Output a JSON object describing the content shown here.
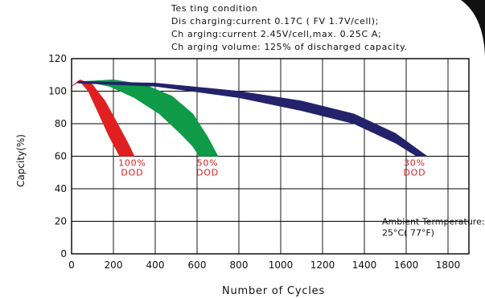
{
  "testing_condition": {
    "heading": "Tes ting condition",
    "lines": [
      "Dis charging:current 0.17C ( FV 1.7V/cell);",
      "Ch arging:current 2.45V/cell,max. 0.25C A;",
      "Ch arging volume: 125% of discharged capacity."
    ]
  },
  "chart_data": {
    "type": "area",
    "title": "",
    "xlabel": "Number of Cycles",
    "ylabel": "Capcity(%)",
    "xlim": [
      0,
      1900
    ],
    "ylim": [
      0,
      120
    ],
    "x_ticks": [
      0,
      200,
      400,
      600,
      800,
      1000,
      1200,
      1400,
      1600,
      1800
    ],
    "y_ticks": [
      0,
      20,
      40,
      60,
      80,
      100,
      120
    ],
    "x_tick_labels": [
      "0",
      "200",
      "400",
      "600",
      "800",
      "1000",
      "1200",
      "1400",
      "1600",
      "1800"
    ],
    "y_tick_labels": [
      "0",
      "20",
      "40",
      "60",
      "80",
      "100",
      "120"
    ],
    "grid": true,
    "series": [
      {
        "label_lines": [
          "100%",
          "DOD"
        ],
        "label_at": [
          290,
          54
        ],
        "color": "#e02020",
        "label_color": "#d62020",
        "upper": [
          [
            0,
            103
          ],
          [
            40,
            107
          ],
          [
            100,
            104
          ],
          [
            160,
            94
          ],
          [
            220,
            80
          ],
          [
            270,
            68
          ],
          [
            300,
            60
          ]
        ],
        "lower": [
          [
            0,
            103
          ],
          [
            40,
            106
          ],
          [
            80,
            100
          ],
          [
            130,
            86
          ],
          [
            180,
            72
          ],
          [
            230,
            60
          ]
        ]
      },
      {
        "label_lines": [
          "50%",
          "DOD"
        ],
        "label_at": [
          650,
          54
        ],
        "color": "#0e9a47",
        "label_color": "#d62020",
        "upper": [
          [
            60,
            106
          ],
          [
            200,
            107
          ],
          [
            350,
            104
          ],
          [
            480,
            97
          ],
          [
            580,
            86
          ],
          [
            650,
            72
          ],
          [
            700,
            60
          ]
        ],
        "lower": [
          [
            60,
            106
          ],
          [
            180,
            103
          ],
          [
            300,
            96
          ],
          [
            420,
            86
          ],
          [
            520,
            74
          ],
          [
            580,
            66
          ],
          [
            610,
            60
          ]
        ]
      },
      {
        "label_lines": [
          "30%",
          "DOD"
        ],
        "label_at": [
          1640,
          54
        ],
        "color": "#23226b",
        "label_color": "#d62020",
        "upper": [
          [
            30,
            106
          ],
          [
            400,
            105
          ],
          [
            800,
            100
          ],
          [
            1100,
            94
          ],
          [
            1350,
            86
          ],
          [
            1550,
            74
          ],
          [
            1700,
            60
          ]
        ],
        "lower": [
          [
            30,
            105
          ],
          [
            400,
            103
          ],
          [
            800,
            96
          ],
          [
            1100,
            88
          ],
          [
            1350,
            80
          ],
          [
            1550,
            68
          ],
          [
            1650,
            60
          ]
        ]
      }
    ],
    "annotation": {
      "lines": [
        "Ambient Termperature:",
        "25°C( 77°F)"
      ],
      "at": [
        1500,
        18
      ]
    }
  }
}
